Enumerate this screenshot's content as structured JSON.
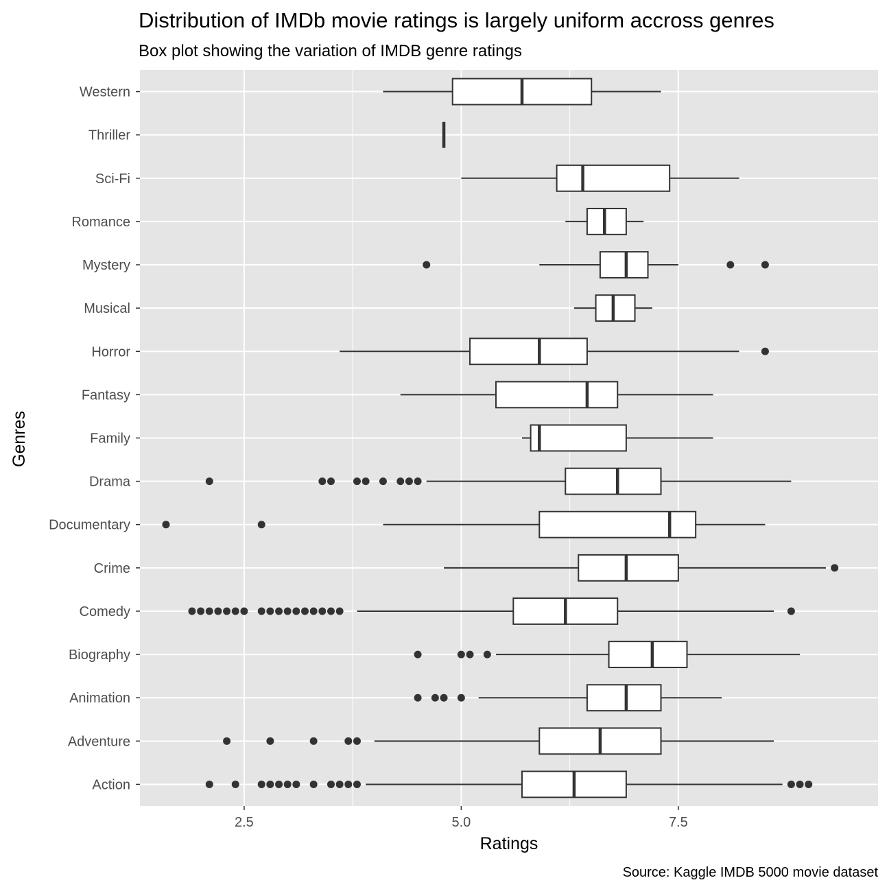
{
  "chart_data": {
    "type": "boxplot",
    "title": "Distribution of IMDb movie ratings is largely uniform accross genres",
    "subtitle": "Box plot showing the variation of IMDB genre ratings",
    "xlabel": "Ratings",
    "ylabel": "Genres",
    "caption": "Source: Kaggle IMDB 5000 movie dataset",
    "xlim": [
      1.3,
      9.8
    ],
    "x_ticks": [
      2.5,
      5.0,
      7.5
    ],
    "x_tick_labels": [
      "2.5",
      "5.0",
      "7.5"
    ],
    "grid": true,
    "categories": [
      "Action",
      "Adventure",
      "Animation",
      "Biography",
      "Comedy",
      "Crime",
      "Documentary",
      "Drama",
      "Family",
      "Fantasy",
      "Horror",
      "Musical",
      "Mystery",
      "Romance",
      "Sci-Fi",
      "Thriller",
      "Western"
    ],
    "boxes": [
      {
        "genre": "Action",
        "whisker_low": 3.9,
        "q1": 5.7,
        "median": 6.3,
        "q3": 6.9,
        "whisker_high": 8.7,
        "outliers": [
          2.1,
          2.4,
          2.7,
          2.8,
          2.9,
          3.0,
          3.1,
          3.3,
          3.5,
          3.6,
          3.7,
          3.8,
          8.8,
          8.9,
          9.0
        ]
      },
      {
        "genre": "Adventure",
        "whisker_low": 4.0,
        "q1": 5.9,
        "median": 6.6,
        "q3": 7.3,
        "whisker_high": 8.6,
        "outliers": [
          2.3,
          2.8,
          3.3,
          3.7,
          3.8
        ]
      },
      {
        "genre": "Animation",
        "whisker_low": 5.2,
        "q1": 6.45,
        "median": 6.9,
        "q3": 7.3,
        "whisker_high": 8.0,
        "outliers": [
          4.5,
          4.7,
          4.8,
          5.0
        ]
      },
      {
        "genre": "Biography",
        "whisker_low": 5.4,
        "q1": 6.7,
        "median": 7.2,
        "q3": 7.6,
        "whisker_high": 8.9,
        "outliers": [
          4.5,
          5.0,
          5.1,
          5.3
        ]
      },
      {
        "genre": "Comedy",
        "whisker_low": 3.8,
        "q1": 5.6,
        "median": 6.2,
        "q3": 6.8,
        "whisker_high": 8.6,
        "outliers": [
          1.9,
          2.0,
          2.1,
          2.2,
          2.3,
          2.4,
          2.5,
          2.7,
          2.8,
          2.9,
          3.0,
          3.1,
          3.2,
          3.3,
          3.4,
          3.5,
          3.6,
          8.8
        ]
      },
      {
        "genre": "Crime",
        "whisker_low": 4.8,
        "q1": 6.35,
        "median": 6.9,
        "q3": 7.5,
        "whisker_high": 9.2,
        "outliers": [
          9.3
        ]
      },
      {
        "genre": "Documentary",
        "whisker_low": 4.1,
        "q1": 5.9,
        "median": 7.4,
        "q3": 7.7,
        "whisker_high": 8.5,
        "outliers": [
          1.6,
          2.7
        ]
      },
      {
        "genre": "Drama",
        "whisker_low": 4.6,
        "q1": 6.2,
        "median": 6.8,
        "q3": 7.3,
        "whisker_high": 8.8,
        "outliers": [
          2.1,
          3.4,
          3.5,
          3.8,
          3.9,
          4.1,
          4.3,
          4.4,
          4.5
        ]
      },
      {
        "genre": "Family",
        "whisker_low": 5.7,
        "q1": 5.8,
        "median": 5.9,
        "q3": 6.9,
        "whisker_high": 7.9,
        "outliers": []
      },
      {
        "genre": "Fantasy",
        "whisker_low": 4.3,
        "q1": 5.4,
        "median": 6.45,
        "q3": 6.8,
        "whisker_high": 7.9,
        "outliers": []
      },
      {
        "genre": "Horror",
        "whisker_low": 3.6,
        "q1": 5.1,
        "median": 5.9,
        "q3": 6.45,
        "whisker_high": 8.2,
        "outliers": [
          8.5
        ]
      },
      {
        "genre": "Musical",
        "whisker_low": 6.3,
        "q1": 6.55,
        "median": 6.75,
        "q3": 7.0,
        "whisker_high": 7.2,
        "outliers": []
      },
      {
        "genre": "Mystery",
        "whisker_low": 5.9,
        "q1": 6.6,
        "median": 6.9,
        "q3": 7.15,
        "whisker_high": 7.5,
        "outliers": [
          4.6,
          8.1,
          8.5
        ]
      },
      {
        "genre": "Romance",
        "whisker_low": 6.2,
        "q1": 6.45,
        "median": 6.65,
        "q3": 6.9,
        "whisker_high": 7.1,
        "outliers": []
      },
      {
        "genre": "Sci-Fi",
        "whisker_low": 5.0,
        "q1": 6.1,
        "median": 6.4,
        "q3": 7.4,
        "whisker_high": 8.2,
        "outliers": []
      },
      {
        "genre": "Thriller",
        "whisker_low": 4.8,
        "q1": 4.8,
        "median": 4.8,
        "q3": 4.8,
        "whisker_high": 4.8,
        "outliers": []
      },
      {
        "genre": "Western",
        "whisker_low": 4.1,
        "q1": 4.9,
        "median": 5.7,
        "q3": 6.5,
        "whisker_high": 7.3,
        "outliers": []
      }
    ]
  },
  "colors": {
    "panel_background": "#e5e5e5",
    "grid_line": "#ffffff",
    "box_fill": "#ffffff",
    "box_stroke": "#333333",
    "outlier": "#333333",
    "tick_text": "#4d4d4d"
  }
}
